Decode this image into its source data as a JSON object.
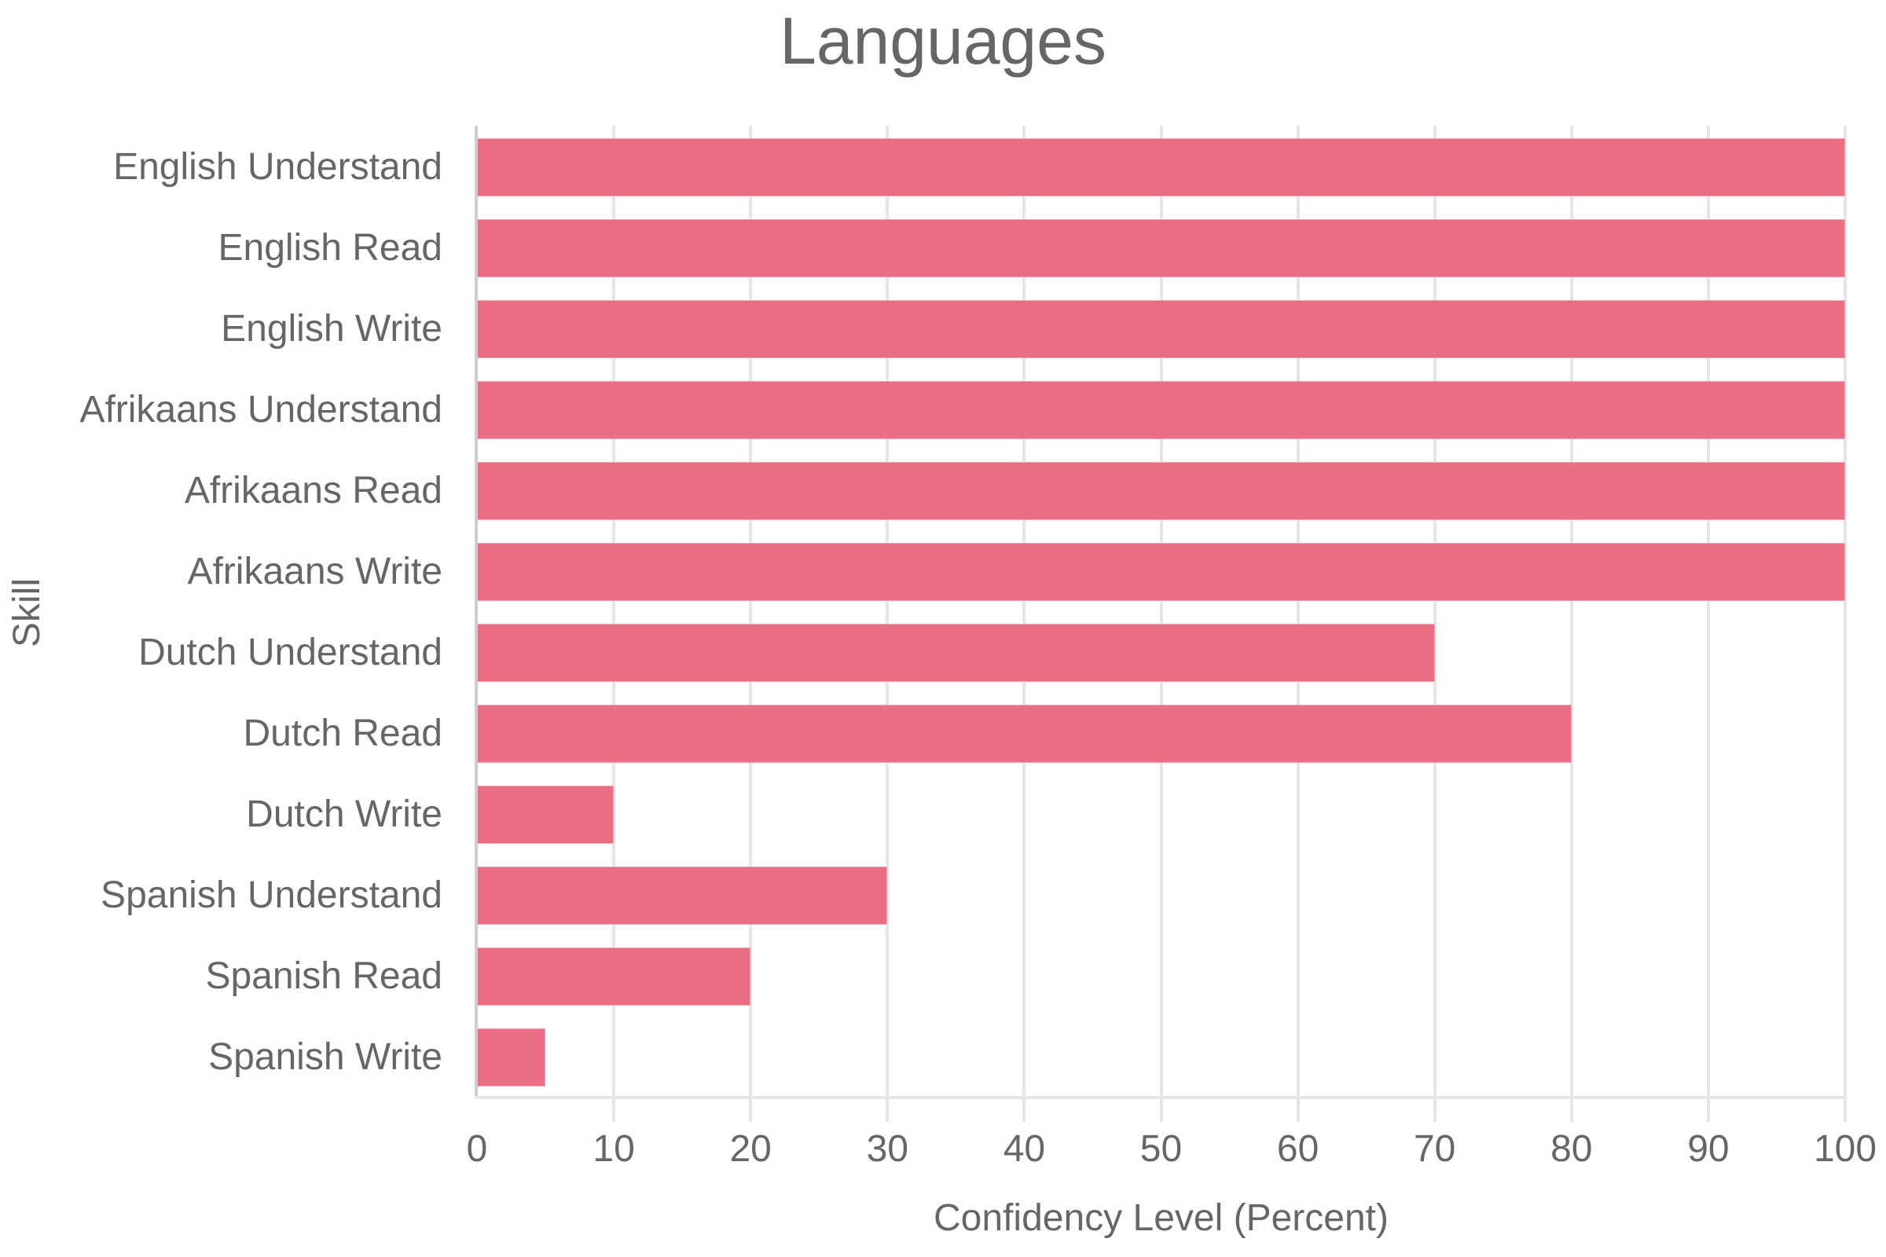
{
  "chart_data": {
    "type": "bar",
    "orientation": "horizontal",
    "title": "Languages",
    "xlabel": "Confidency Level (Percent)",
    "ylabel": "Skill",
    "xlim": [
      0,
      100
    ],
    "x_ticks": [
      0,
      10,
      20,
      30,
      40,
      50,
      60,
      70,
      80,
      90,
      100
    ],
    "grid": "vertical gridlines on",
    "legend": "none",
    "bar_color": "#ec6e85",
    "categories": [
      "English Understand",
      "English Read",
      "English Write",
      "Afrikaans Understand",
      "Afrikaans Read",
      "Afrikaans Write",
      "Dutch Understand",
      "Dutch Read",
      "Dutch Write",
      "Spanish Understand",
      "Spanish Read",
      "Spanish Write"
    ],
    "values": [
      100,
      100,
      100,
      100,
      100,
      100,
      70,
      80,
      10,
      30,
      20,
      5
    ]
  }
}
